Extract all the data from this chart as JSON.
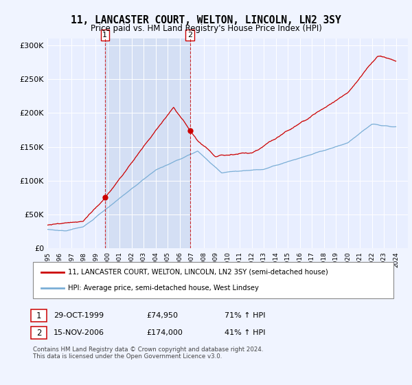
{
  "title": "11, LANCASTER COURT, WELTON, LINCOLN, LN2 3SY",
  "subtitle": "Price paid vs. HM Land Registry's House Price Index (HPI)",
  "ylim": [
    0,
    310000
  ],
  "yticks": [
    0,
    50000,
    100000,
    150000,
    200000,
    250000,
    300000
  ],
  "ytick_labels": [
    "£0",
    "£50K",
    "£100K",
    "£150K",
    "£200K",
    "£250K",
    "£300K"
  ],
  "sale1_date": "29-OCT-1999",
  "sale1_price": 74950,
  "sale1_year": 1999.79,
  "sale1_hpi": "71% ↑ HPI",
  "sale2_date": "15-NOV-2006",
  "sale2_price": 174000,
  "sale2_year": 2006.87,
  "sale2_hpi": "41% ↑ HPI",
  "legend_property": "11, LANCASTER COURT, WELTON, LINCOLN, LN2 3SY (semi-detached house)",
  "legend_hpi": "HPI: Average price, semi-detached house, West Lindsey",
  "footer": "Contains HM Land Registry data © Crown copyright and database right 2024.\nThis data is licensed under the Open Government Licence v3.0.",
  "property_color": "#cc0000",
  "hpi_color": "#7aaed6",
  "background_color": "#f0f4ff",
  "plot_bg_color": "#e8eeff",
  "shade_color": "#ccd9f0",
  "xlim": [
    1995,
    2025
  ],
  "xtick_start": 1995,
  "xtick_end": 2025
}
